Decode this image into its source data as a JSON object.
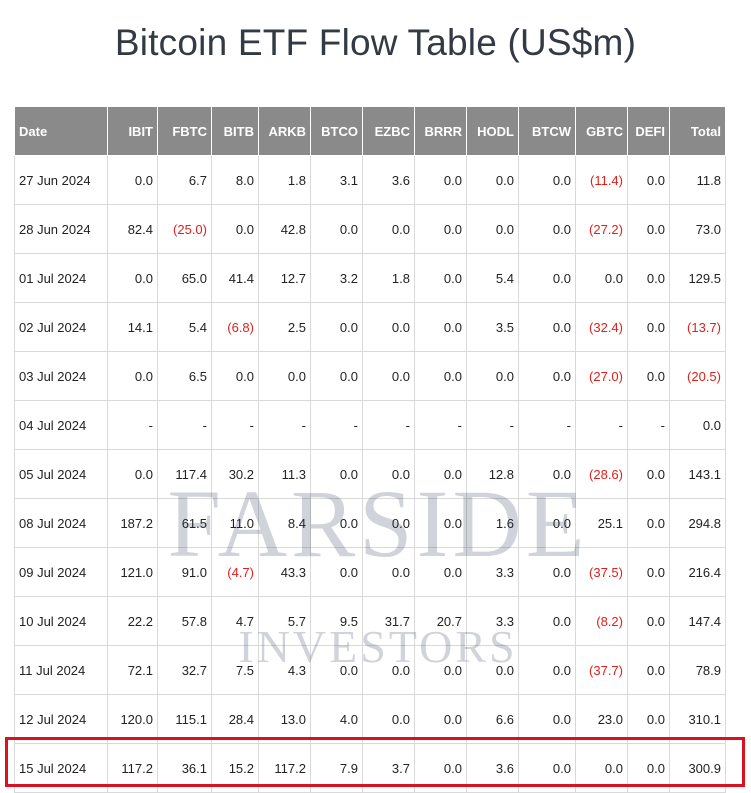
{
  "title": "Bitcoin ETF Flow Table (US$m)",
  "watermark": {
    "line1": "FARSIDE",
    "line2": "INVESTORS"
  },
  "columns": [
    "Date",
    "IBIT",
    "FBTC",
    "BITB",
    "ARKB",
    "BTCO",
    "EZBC",
    "BRRR",
    "HODL",
    "BTCW",
    "GBTC",
    "DEFI",
    "Total"
  ],
  "rows": [
    [
      "27 Jun 2024",
      "0.0",
      "6.7",
      "8.0",
      "1.8",
      "3.1",
      "3.6",
      "0.0",
      "0.0",
      "0.0",
      "(11.4)",
      "0.0",
      "11.8"
    ],
    [
      "28 Jun 2024",
      "82.4",
      "(25.0)",
      "0.0",
      "42.8",
      "0.0",
      "0.0",
      "0.0",
      "0.0",
      "0.0",
      "(27.2)",
      "0.0",
      "73.0"
    ],
    [
      "01 Jul 2024",
      "0.0",
      "65.0",
      "41.4",
      "12.7",
      "3.2",
      "1.8",
      "0.0",
      "5.4",
      "0.0",
      "0.0",
      "0.0",
      "129.5"
    ],
    [
      "02 Jul 2024",
      "14.1",
      "5.4",
      "(6.8)",
      "2.5",
      "0.0",
      "0.0",
      "0.0",
      "3.5",
      "0.0",
      "(32.4)",
      "0.0",
      "(13.7)"
    ],
    [
      "03 Jul 2024",
      "0.0",
      "6.5",
      "0.0",
      "0.0",
      "0.0",
      "0.0",
      "0.0",
      "0.0",
      "0.0",
      "(27.0)",
      "0.0",
      "(20.5)"
    ],
    [
      "04 Jul 2024",
      "-",
      "-",
      "-",
      "-",
      "-",
      "-",
      "-",
      "-",
      "-",
      "-",
      "-",
      "0.0"
    ],
    [
      "05 Jul 2024",
      "0.0",
      "117.4",
      "30.2",
      "11.3",
      "0.0",
      "0.0",
      "0.0",
      "12.8",
      "0.0",
      "(28.6)",
      "0.0",
      "143.1"
    ],
    [
      "08 Jul 2024",
      "187.2",
      "61.5",
      "11.0",
      "8.4",
      "0.0",
      "0.0",
      "0.0",
      "1.6",
      "0.0",
      "25.1",
      "0.0",
      "294.8"
    ],
    [
      "09 Jul 2024",
      "121.0",
      "91.0",
      "(4.7)",
      "43.3",
      "0.0",
      "0.0",
      "0.0",
      "3.3",
      "0.0",
      "(37.5)",
      "0.0",
      "216.4"
    ],
    [
      "10 Jul 2024",
      "22.2",
      "57.8",
      "4.7",
      "5.7",
      "9.5",
      "31.7",
      "20.7",
      "3.3",
      "0.0",
      "(8.2)",
      "0.0",
      "147.4"
    ],
    [
      "11 Jul 2024",
      "72.1",
      "32.7",
      "7.5",
      "4.3",
      "0.0",
      "0.0",
      "0.0",
      "0.0",
      "0.0",
      "(37.7)",
      "0.0",
      "78.9"
    ],
    [
      "12 Jul 2024",
      "120.0",
      "115.1",
      "28.4",
      "13.0",
      "4.0",
      "0.0",
      "0.0",
      "6.6",
      "0.0",
      "23.0",
      "0.0",
      "310.1"
    ],
    [
      "15 Jul 2024",
      "117.2",
      "36.1",
      "15.2",
      "117.2",
      "7.9",
      "3.7",
      "0.0",
      "3.6",
      "0.0",
      "0.0",
      "0.0",
      "300.9"
    ]
  ],
  "colors": {
    "header_bg": "#8a8a8a",
    "negative": "#e0201b",
    "highlight": "#d9121d"
  }
}
